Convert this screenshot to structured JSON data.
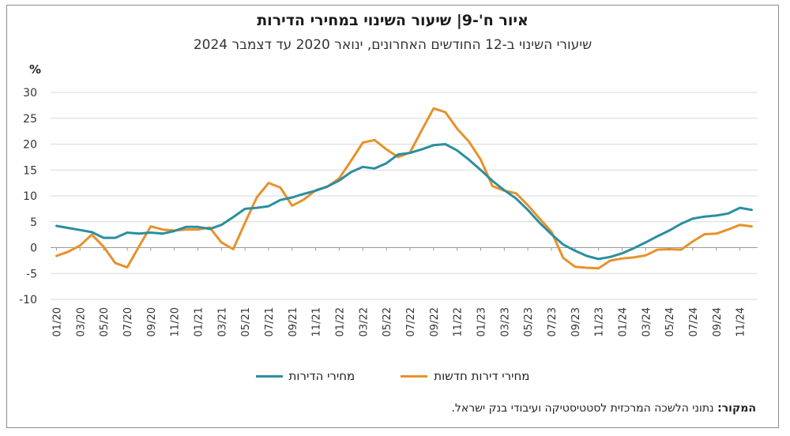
{
  "title": "איור ח'-9| שיעור השינוי במחירי הדירות",
  "subtitle": "שיעורי השינוי ב-12 החודשים האחרונים, ינואר 2020 עד דצמבר 2024",
  "source_label": "המקור:",
  "source_text": " נתוני הלשכה המרכזית לסטטיסטיקה ועיבודי בנק ישראל.",
  "chart_data": {
    "type": "line",
    "ylabel": "%",
    "ylim": [
      -10,
      30
    ],
    "yticks": [
      -10,
      -5,
      0,
      5,
      10,
      15,
      20,
      25,
      30
    ],
    "grid": "horizontal",
    "legend_position": "bottom",
    "x": [
      "01/20",
      "02/20",
      "03/20",
      "04/20",
      "05/20",
      "06/20",
      "07/20",
      "08/20",
      "09/20",
      "10/20",
      "11/20",
      "12/20",
      "01/21",
      "02/21",
      "03/21",
      "04/21",
      "05/21",
      "06/21",
      "07/21",
      "08/21",
      "09/21",
      "10/21",
      "11/21",
      "12/21",
      "01/22",
      "02/22",
      "03/22",
      "04/22",
      "05/22",
      "06/22",
      "07/22",
      "08/22",
      "09/22",
      "10/22",
      "11/22",
      "12/22",
      "01/23",
      "02/23",
      "03/23",
      "04/23",
      "05/23",
      "06/23",
      "07/23",
      "08/23",
      "09/23",
      "10/23",
      "11/23",
      "12/23",
      "01/24",
      "02/24",
      "03/24",
      "04/24",
      "05/24",
      "06/24",
      "07/24",
      "08/24",
      "09/24",
      "10/24",
      "11/24",
      "12/24"
    ],
    "xticks_shown": [
      "01/20",
      "03/20",
      "05/20",
      "07/20",
      "09/20",
      "11/20",
      "01/21",
      "03/21",
      "05/21",
      "07/21",
      "09/21",
      "11/21",
      "01/22",
      "03/22",
      "05/22",
      "07/22",
      "09/22",
      "11/22",
      "01/23",
      "03/23",
      "05/23",
      "07/23",
      "09/23",
      "11/23",
      "01/24",
      "03/24",
      "05/24",
      "07/24",
      "09/24",
      "11/24"
    ],
    "series": [
      {
        "name": "מחירי הדירות",
        "color": "#2b8ea0",
        "values": [
          4.2,
          3.8,
          3.4,
          3.0,
          1.9,
          1.9,
          2.9,
          2.7,
          2.9,
          2.7,
          3.2,
          4.0,
          4.0,
          3.6,
          4.4,
          5.9,
          7.5,
          7.7,
          8.0,
          9.2,
          9.7,
          10.4,
          11.0,
          11.8,
          13.0,
          14.6,
          15.6,
          15.3,
          16.3,
          18.0,
          18.3,
          19.0,
          19.8,
          20.0,
          18.8,
          17.0,
          15.0,
          12.9,
          11.1,
          9.5,
          7.3,
          4.8,
          2.6,
          0.6,
          -0.6,
          -1.6,
          -2.2,
          -1.8,
          -1.1,
          -0.1,
          1.0,
          2.2,
          3.3,
          4.6,
          5.6,
          6.0,
          6.2,
          6.6,
          7.7,
          7.3
        ]
      },
      {
        "name": "מחירי דירות חדשות",
        "color": "#e8912b",
        "values": [
          -1.6,
          -0.8,
          0.4,
          2.5,
          0.2,
          -3.0,
          -3.8,
          0.2,
          4.1,
          3.5,
          3.3,
          3.5,
          3.5,
          3.9,
          1.0,
          -0.3,
          4.8,
          9.7,
          12.5,
          11.6,
          8.1,
          9.3,
          11.1,
          11.8,
          13.4,
          16.8,
          20.3,
          20.8,
          19.0,
          17.5,
          18.4,
          22.7,
          26.9,
          26.2,
          23.0,
          20.5,
          17.0,
          11.9,
          11.0,
          10.5,
          8.2,
          5.6,
          3.1,
          -2.0,
          -3.7,
          -3.9,
          -4.0,
          -2.5,
          -2.1,
          -1.9,
          -1.5,
          -0.4,
          -0.3,
          -0.4,
          1.2,
          2.6,
          2.7,
          3.5,
          4.4,
          4.1
        ]
      }
    ]
  }
}
